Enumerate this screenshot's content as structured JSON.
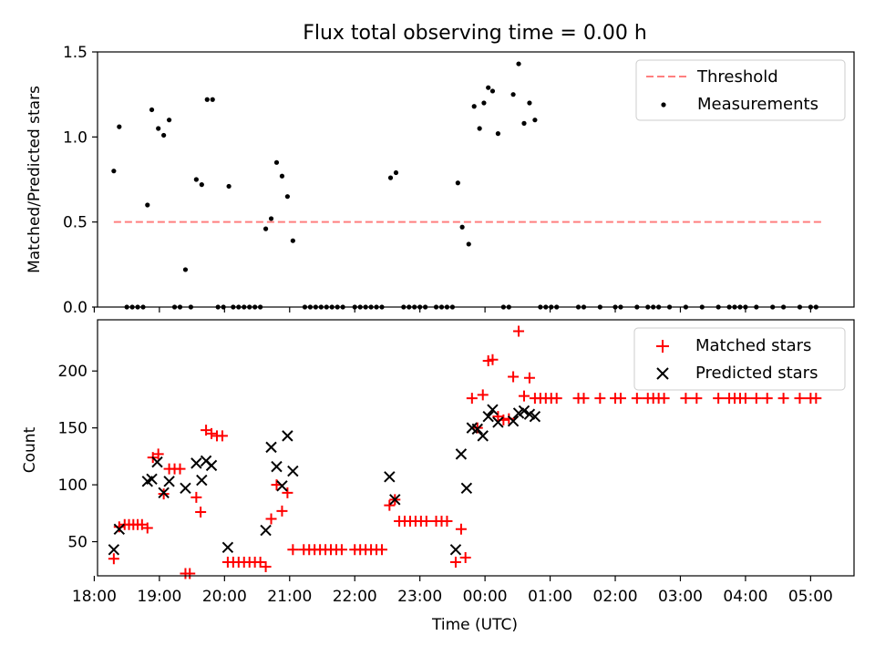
{
  "chart_data": [
    {
      "type": "scatter",
      "title": "Flux total observing time = 0.00 h",
      "ylabel": "Matched/Predicted stars",
      "ylim": [
        0,
        1.5
      ],
      "yticks": [
        0,
        0.5,
        1.0,
        1.5
      ],
      "ytick_labels": [
        "0.0",
        "0.5",
        "1.0",
        "1.5"
      ],
      "xlim": [
        "18:03",
        "05:40"
      ],
      "grid": false,
      "legend_position": "top-right",
      "legend": [
        "Threshold",
        "Measurements"
      ],
      "threshold": {
        "name": "Threshold",
        "value": 0.5,
        "x_start": "18:18",
        "x_end": "05:12",
        "color": "#ff7f7f",
        "style": "dashed"
      },
      "series": [
        {
          "name": "Measurements",
          "color": "#000000",
          "marker": "dot",
          "points": [
            [
              "18:18",
              0.8
            ],
            [
              "18:23",
              1.06
            ],
            [
              "18:30",
              0.0
            ],
            [
              "18:35",
              0.0
            ],
            [
              "18:40",
              0.0
            ],
            [
              "18:45",
              0.0
            ],
            [
              "18:49",
              0.6
            ],
            [
              "18:53",
              1.16
            ],
            [
              "18:59",
              1.05
            ],
            [
              "19:04",
              1.01
            ],
            [
              "19:09",
              1.1
            ],
            [
              "19:14",
              0.0
            ],
            [
              "19:19",
              0.0
            ],
            [
              "19:24",
              0.22
            ],
            [
              "19:29",
              0.0
            ],
            [
              "19:34",
              0.75
            ],
            [
              "19:39",
              0.72
            ],
            [
              "19:44",
              1.22
            ],
            [
              "19:49",
              1.22
            ],
            [
              "19:54",
              0.0
            ],
            [
              "19:59",
              0.0
            ],
            [
              "20:04",
              0.71
            ],
            [
              "20:08",
              0.0
            ],
            [
              "20:13",
              0.0
            ],
            [
              "20:18",
              0.0
            ],
            [
              "20:23",
              0.0
            ],
            [
              "20:28",
              0.0
            ],
            [
              "20:33",
              0.0
            ],
            [
              "20:38",
              0.46
            ],
            [
              "20:43",
              0.52
            ],
            [
              "20:48",
              0.85
            ],
            [
              "20:53",
              0.77
            ],
            [
              "20:58",
              0.65
            ],
            [
              "21:03",
              0.39
            ],
            [
              "21:14",
              0.0
            ],
            [
              "21:19",
              0.0
            ],
            [
              "21:24",
              0.0
            ],
            [
              "21:29",
              0.0
            ],
            [
              "21:34",
              0.0
            ],
            [
              "21:39",
              0.0
            ],
            [
              "21:44",
              0.0
            ],
            [
              "21:49",
              0.0
            ],
            [
              "22:00",
              0.0
            ],
            [
              "22:05",
              0.0
            ],
            [
              "22:10",
              0.0
            ],
            [
              "22:15",
              0.0
            ],
            [
              "22:20",
              0.0
            ],
            [
              "22:25",
              0.0
            ],
            [
              "22:33",
              0.76
            ],
            [
              "22:38",
              0.79
            ],
            [
              "22:45",
              0.0
            ],
            [
              "22:50",
              0.0
            ],
            [
              "22:55",
              0.0
            ],
            [
              "23:00",
              0.0
            ],
            [
              "23:05",
              0.0
            ],
            [
              "23:15",
              0.0
            ],
            [
              "23:20",
              0.0
            ],
            [
              "23:25",
              0.0
            ],
            [
              "23:30",
              0.0
            ],
            [
              "23:35",
              0.73
            ],
            [
              "23:39",
              0.47
            ],
            [
              "23:45",
              0.37
            ],
            [
              "23:50",
              1.18
            ],
            [
              "23:55",
              1.05
            ],
            [
              "23:59",
              1.2
            ],
            [
              "00:03",
              1.29
            ],
            [
              "00:07",
              1.27
            ],
            [
              "00:12",
              1.02
            ],
            [
              "00:17",
              0.0
            ],
            [
              "00:22",
              0.0
            ],
            [
              "00:26",
              1.25
            ],
            [
              "00:31",
              1.43
            ],
            [
              "00:36",
              1.08
            ],
            [
              "00:41",
              1.2
            ],
            [
              "00:46",
              1.1
            ],
            [
              "00:51",
              0.0
            ],
            [
              "00:56",
              0.0
            ],
            [
              "01:01",
              0.0
            ],
            [
              "01:06",
              0.0
            ],
            [
              "01:26",
              0.0
            ],
            [
              "01:31",
              0.0
            ],
            [
              "01:46",
              0.0
            ],
            [
              "02:00",
              0.0
            ],
            [
              "02:05",
              0.0
            ],
            [
              "02:20",
              0.0
            ],
            [
              "02:30",
              0.0
            ],
            [
              "02:35",
              0.0
            ],
            [
              "02:40",
              0.0
            ],
            [
              "02:50",
              0.0
            ],
            [
              "03:05",
              0.0
            ],
            [
              "03:20",
              0.0
            ],
            [
              "03:35",
              0.0
            ],
            [
              "03:45",
              0.0
            ],
            [
              "03:50",
              0.0
            ],
            [
              "03:55",
              0.0
            ],
            [
              "04:00",
              0.0
            ],
            [
              "04:10",
              0.0
            ],
            [
              "04:25",
              0.0
            ],
            [
              "04:35",
              0.0
            ],
            [
              "04:50",
              0.0
            ],
            [
              "05:00",
              0.0
            ],
            [
              "05:05",
              0.0
            ]
          ]
        }
      ]
    },
    {
      "type": "scatter",
      "xlabel": "Time (UTC)",
      "ylabel": "Count",
      "ylim": [
        20,
        245
      ],
      "yticks": [
        50,
        100,
        150,
        200
      ],
      "xlim": [
        "18:03",
        "05:40"
      ],
      "xticks": [
        "18:00",
        "19:00",
        "20:00",
        "21:00",
        "22:00",
        "23:00",
        "00:00",
        "01:00",
        "02:00",
        "03:00",
        "04:00",
        "05:00"
      ],
      "grid": false,
      "legend_position": "top-right",
      "legend": [
        "Matched stars",
        "Predicted stars"
      ],
      "series": [
        {
          "name": "Matched stars",
          "color": "#ff0000",
          "marker": "plus",
          "points": [
            [
              "18:18",
              35
            ],
            [
              "18:23",
              63
            ],
            [
              "18:28",
              65
            ],
            [
              "18:32",
              65
            ],
            [
              "18:36",
              65
            ],
            [
              "18:40",
              65
            ],
            [
              "18:44",
              65
            ],
            [
              "18:49",
              62
            ],
            [
              "18:54",
              124
            ],
            [
              "18:59",
              127
            ],
            [
              "19:04",
              92
            ],
            [
              "19:09",
              114
            ],
            [
              "19:14",
              114
            ],
            [
              "19:19",
              114
            ],
            [
              "19:24",
              22
            ],
            [
              "19:28",
              22
            ],
            [
              "19:34",
              89
            ],
            [
              "19:38",
              76
            ],
            [
              "19:43",
              148
            ],
            [
              "19:48",
              145
            ],
            [
              "19:53",
              143
            ],
            [
              "19:58",
              143
            ],
            [
              "20:03",
              32
            ],
            [
              "20:08",
              32
            ],
            [
              "20:13",
              32
            ],
            [
              "20:18",
              32
            ],
            [
              "20:23",
              32
            ],
            [
              "20:28",
              32
            ],
            [
              "20:33",
              32
            ],
            [
              "20:38",
              28
            ],
            [
              "20:43",
              70
            ],
            [
              "20:48",
              100
            ],
            [
              "20:53",
              77
            ],
            [
              "20:58",
              93
            ],
            [
              "21:03",
              43
            ],
            [
              "21:13",
              43
            ],
            [
              "21:18",
              43
            ],
            [
              "21:23",
              43
            ],
            [
              "21:28",
              43
            ],
            [
              "21:33",
              43
            ],
            [
              "21:38",
              43
            ],
            [
              "21:43",
              43
            ],
            [
              "21:48",
              43
            ],
            [
              "22:00",
              43
            ],
            [
              "22:05",
              43
            ],
            [
              "22:10",
              43
            ],
            [
              "22:15",
              43
            ],
            [
              "22:20",
              43
            ],
            [
              "22:25",
              43
            ],
            [
              "22:32",
              82
            ],
            [
              "22:37",
              87
            ],
            [
              "22:41",
              68
            ],
            [
              "22:46",
              68
            ],
            [
              "22:51",
              68
            ],
            [
              "22:56",
              68
            ],
            [
              "23:01",
              68
            ],
            [
              "23:06",
              68
            ],
            [
              "23:15",
              68
            ],
            [
              "23:20",
              68
            ],
            [
              "23:25",
              68
            ],
            [
              "23:33",
              32
            ],
            [
              "23:38",
              61
            ],
            [
              "23:42",
              36
            ],
            [
              "23:48",
              176
            ],
            [
              "23:53",
              150
            ],
            [
              "23:58",
              179
            ],
            [
              "00:03",
              209
            ],
            [
              "00:07",
              210
            ],
            [
              "00:12",
              160
            ],
            [
              "00:17",
              157
            ],
            [
              "00:22",
              158
            ],
            [
              "00:26",
              195
            ],
            [
              "00:31",
              235
            ],
            [
              "00:36",
              178
            ],
            [
              "00:41",
              194
            ],
            [
              "00:46",
              176
            ],
            [
              "00:51",
              176
            ],
            [
              "00:56",
              176
            ],
            [
              "01:01",
              176
            ],
            [
              "01:06",
              176
            ],
            [
              "01:26",
              176
            ],
            [
              "01:31",
              176
            ],
            [
              "01:46",
              176
            ],
            [
              "02:00",
              176
            ],
            [
              "02:05",
              176
            ],
            [
              "02:20",
              176
            ],
            [
              "02:30",
              176
            ],
            [
              "02:35",
              176
            ],
            [
              "02:40",
              176
            ],
            [
              "02:45",
              176
            ],
            [
              "03:05",
              176
            ],
            [
              "03:15",
              176
            ],
            [
              "03:35",
              176
            ],
            [
              "03:45",
              176
            ],
            [
              "03:50",
              176
            ],
            [
              "03:55",
              176
            ],
            [
              "04:00",
              176
            ],
            [
              "04:10",
              176
            ],
            [
              "04:20",
              176
            ],
            [
              "04:35",
              176
            ],
            [
              "04:50",
              176
            ],
            [
              "05:00",
              176
            ],
            [
              "05:05",
              176
            ]
          ]
        },
        {
          "name": "Predicted stars",
          "color": "#000000",
          "marker": "x",
          "points": [
            [
              "18:18",
              43
            ],
            [
              "18:23",
              61
            ],
            [
              "18:49",
              103
            ],
            [
              "18:53",
              105
            ],
            [
              "18:58",
              120
            ],
            [
              "19:04",
              93
            ],
            [
              "19:09",
              103
            ],
            [
              "19:24",
              97
            ],
            [
              "19:34",
              119
            ],
            [
              "19:39",
              104
            ],
            [
              "19:43",
              121
            ],
            [
              "19:48",
              117
            ],
            [
              "20:03",
              45
            ],
            [
              "20:38",
              60
            ],
            [
              "20:43",
              133
            ],
            [
              "20:48",
              116
            ],
            [
              "20:53",
              99
            ],
            [
              "20:58",
              143
            ],
            [
              "21:03",
              112
            ],
            [
              "22:32",
              107
            ],
            [
              "22:37",
              87
            ],
            [
              "23:33",
              43
            ],
            [
              "23:38",
              127
            ],
            [
              "23:43",
              97
            ],
            [
              "23:48",
              150
            ],
            [
              "23:53",
              149
            ],
            [
              "23:58",
              143
            ],
            [
              "00:03",
              160
            ],
            [
              "00:07",
              166
            ],
            [
              "00:12",
              155
            ],
            [
              "00:26",
              156
            ],
            [
              "00:31",
              163
            ],
            [
              "00:36",
              165
            ],
            [
              "00:41",
              162
            ],
            [
              "00:46",
              160
            ]
          ]
        }
      ]
    }
  ]
}
